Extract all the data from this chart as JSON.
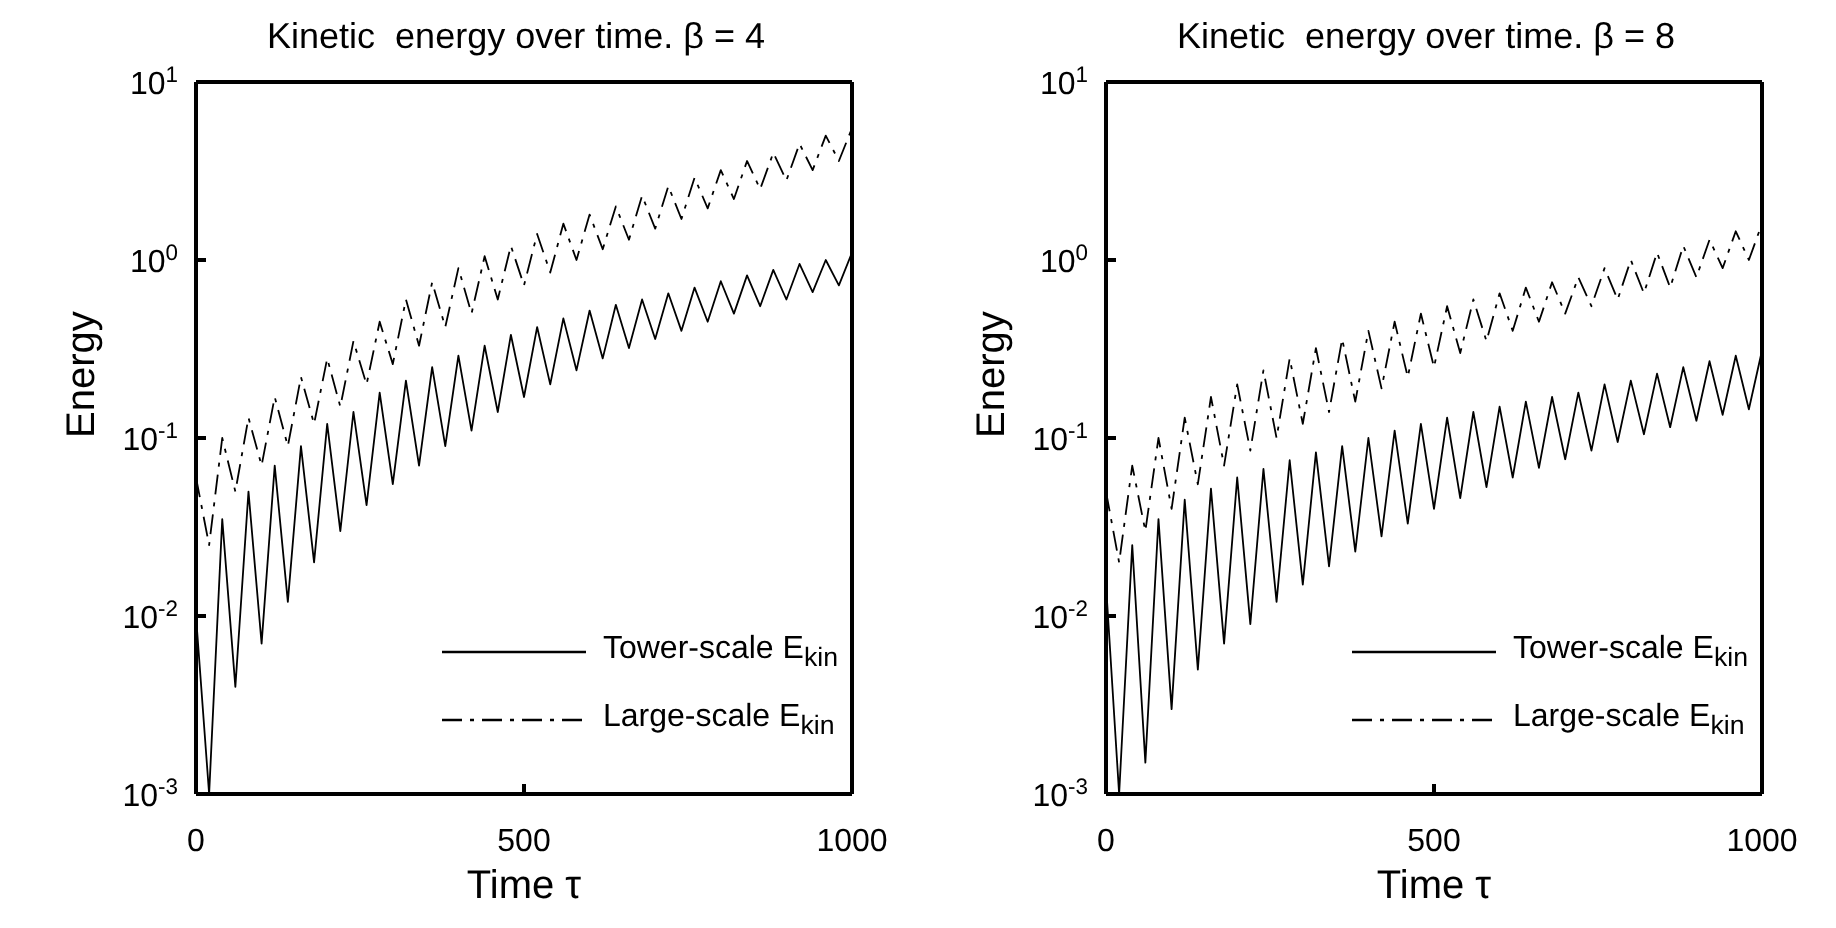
{
  "chart_data": [
    {
      "type": "line",
      "title": "Kinetic  energy over time. β = 4",
      "xlabel": "Time τ",
      "ylabel": "Energy",
      "log": "y",
      "legend": "bottom right",
      "grid": false,
      "xlim": [
        0,
        1000
      ],
      "xticks": [
        0,
        500,
        1000
      ],
      "ylim": [
        0.001,
        10
      ],
      "yticks": [
        {
          "value": 0.001,
          "label": "10$^{-3}$"
        },
        {
          "value": 0.01,
          "label": "10$^{-2}$"
        },
        {
          "value": 0.1,
          "label": "10$^{-1}$"
        },
        {
          "value": 1,
          "label": "10$^{0}$"
        },
        {
          "value": 10,
          "label": "10$^{1}$"
        }
      ],
      "x": [
        0,
        20,
        40,
        60,
        80,
        100,
        120,
        140,
        160,
        180,
        200,
        220,
        240,
        260,
        280,
        300,
        320,
        340,
        360,
        380,
        400,
        420,
        440,
        460,
        480,
        500,
        520,
        540,
        560,
        580,
        600,
        620,
        640,
        660,
        680,
        700,
        720,
        740,
        760,
        780,
        800,
        820,
        840,
        860,
        880,
        900,
        920,
        940,
        960,
        980,
        1000
      ],
      "series": [
        {
          "name": "Tower-scale E$_{kin}$",
          "color": "#000000",
          "line_style": "solid",
          "values": [
            0.01,
            0.001,
            0.035,
            0.004,
            0.05,
            0.007,
            0.07,
            0.012,
            0.09,
            0.02,
            0.12,
            0.03,
            0.14,
            0.042,
            0.18,
            0.055,
            0.21,
            0.07,
            0.25,
            0.09,
            0.29,
            0.11,
            0.33,
            0.14,
            0.38,
            0.17,
            0.42,
            0.2,
            0.47,
            0.24,
            0.52,
            0.28,
            0.56,
            0.32,
            0.6,
            0.36,
            0.65,
            0.4,
            0.7,
            0.45,
            0.76,
            0.5,
            0.82,
            0.55,
            0.88,
            0.6,
            0.95,
            0.66,
            1.0,
            0.72,
            1.1
          ]
        },
        {
          "name": "Large-scale E$_{kin}$",
          "color": "#000000",
          "line_style": "dashed",
          "values": [
            0.06,
            0.025,
            0.1,
            0.05,
            0.13,
            0.07,
            0.17,
            0.09,
            0.22,
            0.12,
            0.28,
            0.15,
            0.35,
            0.2,
            0.45,
            0.26,
            0.6,
            0.33,
            0.75,
            0.42,
            0.9,
            0.5,
            1.05,
            0.6,
            1.2,
            0.72,
            1.4,
            0.85,
            1.6,
            1.0,
            1.8,
            1.15,
            2.0,
            1.3,
            2.3,
            1.5,
            2.6,
            1.7,
            2.9,
            1.95,
            3.2,
            2.2,
            3.6,
            2.5,
            4.0,
            2.8,
            4.5,
            3.2,
            5.0,
            3.6,
            5.5
          ]
        }
      ]
    },
    {
      "type": "line",
      "title": "Kinetic  energy over time. β = 8",
      "xlabel": "Time τ",
      "ylabel": "Energy",
      "log": "y",
      "legend": "bottom right",
      "grid": false,
      "xlim": [
        0,
        1000
      ],
      "xticks": [
        0,
        500,
        1000
      ],
      "ylim": [
        0.001,
        10
      ],
      "yticks": [
        {
          "value": 0.001,
          "label": "10$^{-3}$"
        },
        {
          "value": 0.01,
          "label": "10$^{-2}$"
        },
        {
          "value": 0.1,
          "label": "10$^{-1}$"
        },
        {
          "value": 1,
          "label": "10$^{0}$"
        },
        {
          "value": 10,
          "label": "10$^{1}$"
        }
      ],
      "x": [
        0,
        20,
        40,
        60,
        80,
        100,
        120,
        140,
        160,
        180,
        200,
        220,
        240,
        260,
        280,
        300,
        320,
        340,
        360,
        380,
        400,
        420,
        440,
        460,
        480,
        500,
        520,
        540,
        560,
        580,
        600,
        620,
        640,
        660,
        680,
        700,
        720,
        740,
        760,
        780,
        800,
        820,
        840,
        860,
        880,
        900,
        920,
        940,
        960,
        980,
        1000
      ],
      "series": [
        {
          "name": "Tower-scale E$_{kin}$",
          "color": "#000000",
          "line_style": "solid",
          "values": [
            0.015,
            0.001,
            0.025,
            0.0015,
            0.035,
            0.003,
            0.045,
            0.005,
            0.052,
            0.007,
            0.06,
            0.009,
            0.067,
            0.012,
            0.075,
            0.015,
            0.083,
            0.019,
            0.09,
            0.023,
            0.1,
            0.028,
            0.11,
            0.033,
            0.12,
            0.04,
            0.13,
            0.046,
            0.14,
            0.053,
            0.15,
            0.06,
            0.16,
            0.068,
            0.17,
            0.076,
            0.18,
            0.085,
            0.2,
            0.095,
            0.21,
            0.105,
            0.23,
            0.115,
            0.25,
            0.125,
            0.27,
            0.135,
            0.29,
            0.145,
            0.31
          ]
        },
        {
          "name": "Large-scale E$_{kin}$",
          "color": "#000000",
          "line_style": "dashed",
          "values": [
            0.05,
            0.02,
            0.07,
            0.03,
            0.1,
            0.04,
            0.13,
            0.055,
            0.17,
            0.07,
            0.2,
            0.085,
            0.24,
            0.1,
            0.28,
            0.12,
            0.32,
            0.14,
            0.36,
            0.16,
            0.4,
            0.19,
            0.45,
            0.22,
            0.5,
            0.25,
            0.55,
            0.3,
            0.6,
            0.35,
            0.65,
            0.4,
            0.7,
            0.45,
            0.75,
            0.5,
            0.8,
            0.55,
            0.9,
            0.6,
            1.0,
            0.65,
            1.1,
            0.7,
            1.2,
            0.8,
            1.3,
            0.9,
            1.45,
            1.0,
            1.6
          ]
        }
      ]
    }
  ]
}
